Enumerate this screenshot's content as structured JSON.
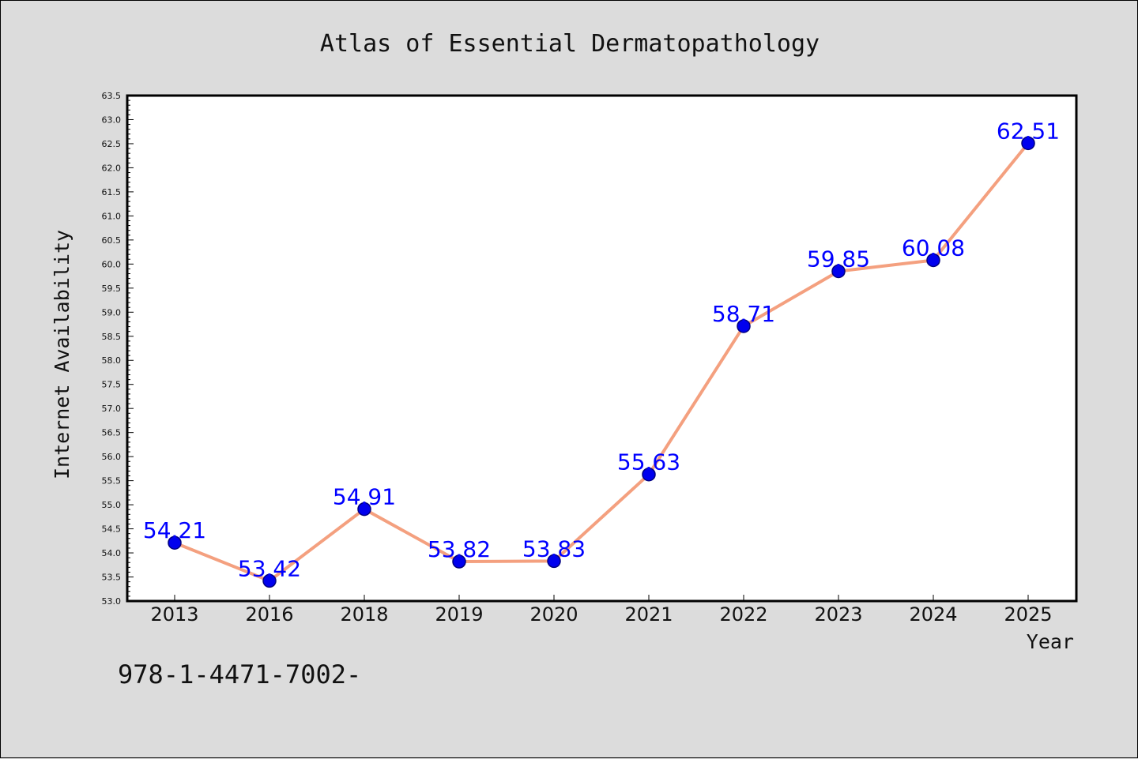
{
  "chart_data": {
    "type": "line",
    "title": "Atlas of Essential Dermatopathology",
    "xlabel": "Year",
    "ylabel": "Internet Availability",
    "categories": [
      "2013",
      "2016",
      "2018",
      "2019",
      "2020",
      "2021",
      "2022",
      "2023",
      "2024",
      "2025"
    ],
    "values": [
      54.21,
      53.42,
      54.91,
      53.82,
      53.83,
      55.63,
      58.71,
      59.85,
      60.08,
      62.51
    ],
    "data_labels": [
      "54.21",
      "53.42",
      "54.91",
      "53.82",
      "53.83",
      "55.63",
      "58.71",
      "59.85",
      "60.08",
      "62.51"
    ],
    "ylim": [
      53.0,
      63.5
    ],
    "yticks": [
      "53.0",
      "53.5",
      "54.0",
      "54.5",
      "55.0",
      "55.5",
      "56.0",
      "56.5",
      "57.0",
      "57.5",
      "58.0",
      "58.5",
      "59.0",
      "59.5",
      "60.0",
      "60.5",
      "61.0",
      "61.5",
      "62.0",
      "62.5",
      "63.0",
      "63.5"
    ],
    "grid": false,
    "colors": {
      "line": "#f4a07f",
      "marker": "#0000ee",
      "marker_edge": "#000080",
      "label": "#0000ff",
      "background": "#dcdcdc",
      "plot_bg": "#ffffff"
    }
  },
  "footer": {
    "isbn": "978-1-4471-7002-"
  }
}
